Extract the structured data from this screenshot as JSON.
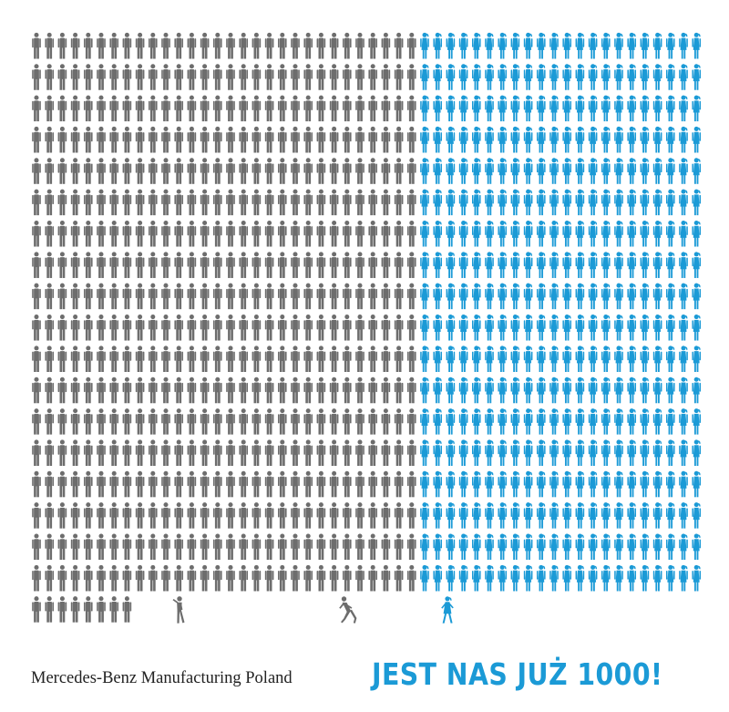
{
  "brand": {
    "text": "Mercedes-Benz Manufacturing Poland"
  },
  "headline": {
    "text": "JEST NAS JUŻ 1000!"
  },
  "colors": {
    "men": "#6d6d6d",
    "women": "#1b9ad6",
    "background": "#ffffff"
  },
  "pictogram": {
    "grid_rows": 18,
    "men_per_row": 30,
    "women_per_row": 22,
    "last_row_men": 8,
    "walking_men": 2,
    "walking_women": 1,
    "icon_names": [
      "man-icon",
      "woman-icon",
      "walking-man-icon",
      "running-man-icon",
      "walking-woman-icon"
    ]
  }
}
